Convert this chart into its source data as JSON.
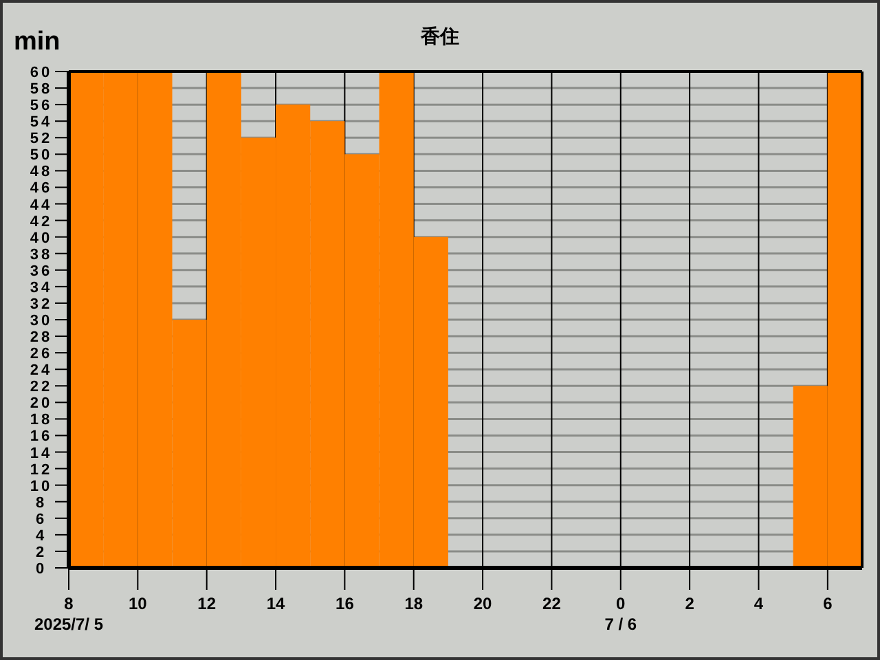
{
  "chart_data": {
    "type": "bar",
    "title": "香住",
    "ylabel": "min",
    "x": [
      "2025-07-05T08:30",
      "2025-07-05T09:30",
      "2025-07-05T10:30",
      "2025-07-05T11:30",
      "2025-07-05T12:30",
      "2025-07-05T13:30",
      "2025-07-05T14:30",
      "2025-07-05T15:30",
      "2025-07-05T16:30",
      "2025-07-05T17:30",
      "2025-07-05T18:30",
      "2025-07-05T19:30",
      "2025-07-05T20:30",
      "2025-07-05T21:30",
      "2025-07-05T22:30",
      "2025-07-05T23:30",
      "2025-07-06T00:30",
      "2025-07-06T01:30",
      "2025-07-06T02:30",
      "2025-07-06T03:30",
      "2025-07-06T04:30",
      "2025-07-06T05:30",
      "2025-07-06T06:30"
    ],
    "values": [
      60,
      60,
      60,
      30,
      60,
      52,
      56,
      54,
      50,
      60,
      40,
      0,
      0,
      0,
      0,
      0,
      0,
      0,
      0,
      0,
      0,
      22,
      60
    ],
    "color": "#ff8000",
    "xlim": [
      "2025-07-05T08:00",
      "2025-07-06T07:00"
    ],
    "xticks": [
      {
        "value": "2025-07-05T08:00",
        "label": "8\n2025/7/ 5"
      },
      {
        "value": "2025-07-05T10:00",
        "label": "10"
      },
      {
        "value": "2025-07-05T12:00",
        "label": "12"
      },
      {
        "value": "2025-07-05T14:00",
        "label": "14"
      },
      {
        "value": "2025-07-05T16:00",
        "label": "16"
      },
      {
        "value": "2025-07-05T18:00",
        "label": "18"
      },
      {
        "value": "2025-07-05T20:00",
        "label": "20"
      },
      {
        "value": "2025-07-05T22:00",
        "label": "22"
      },
      {
        "value": "2025-07-06T00:00",
        "label": "0\n7 / 6"
      },
      {
        "value": "2025-07-06T02:00",
        "label": "2"
      },
      {
        "value": "2025-07-06T04:00",
        "label": "4"
      },
      {
        "value": "2025-07-06T06:00",
        "label": "6"
      }
    ],
    "ylim": [
      0,
      60
    ],
    "yticks": [
      0,
      2,
      4,
      6,
      8,
      10,
      12,
      14,
      16,
      18,
      20,
      22,
      24,
      26,
      28,
      30,
      32,
      34,
      36,
      38,
      40,
      42,
      44,
      46,
      48,
      50,
      52,
      54,
      56,
      58,
      60
    ],
    "grid": true
  }
}
